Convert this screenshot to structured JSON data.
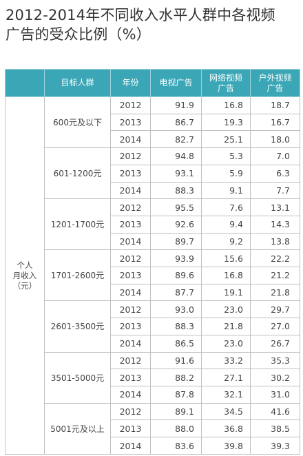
{
  "title": {
    "line1": "2012-2014年不同收入水平人群中各视频",
    "line2": "广告的受众比例（%）"
  },
  "chart_data": {
    "type": "table",
    "title": "2012-2014年不同收入水平人群中各视频广告的受众比例（%）",
    "columns": [
      "",
      "目标人群",
      "年份",
      "电视广告",
      "网络视频广告",
      "户外视频广告"
    ],
    "column_lines": {
      "col3": [
        "网络视频",
        "广告"
      ],
      "col4": [
        "户外视频",
        "广告"
      ]
    },
    "category": [
      "个人",
      "月收入",
      "（元）"
    ],
    "groups": [
      {
        "label": "600元及以下",
        "rows": [
          {
            "year": "2012",
            "tv": "91.9",
            "web": "16.8",
            "outdoor": "18.7"
          },
          {
            "year": "2013",
            "tv": "86.7",
            "web": "19.3",
            "outdoor": "16.7"
          },
          {
            "year": "2014",
            "tv": "82.7",
            "web": "25.1",
            "outdoor": "18.0"
          }
        ]
      },
      {
        "label": "601-1200元",
        "rows": [
          {
            "year": "2012",
            "tv": "94.8",
            "web": "5.3",
            "outdoor": "7.0"
          },
          {
            "year": "2013",
            "tv": "93.1",
            "web": "5.9",
            "outdoor": "6.3"
          },
          {
            "year": "2014",
            "tv": "88.3",
            "web": "9.1",
            "outdoor": "7.7"
          }
        ]
      },
      {
        "label": "1201-1700元",
        "rows": [
          {
            "year": "2012",
            "tv": "95.5",
            "web": "7.6",
            "outdoor": "13.1"
          },
          {
            "year": "2013",
            "tv": "92.6",
            "web": "9.4",
            "outdoor": "14.3"
          },
          {
            "year": "2014",
            "tv": "89.7",
            "web": "9.2",
            "outdoor": "13.8"
          }
        ]
      },
      {
        "label": "1701-2600元",
        "rows": [
          {
            "year": "2012",
            "tv": "93.9",
            "web": "15.6",
            "outdoor": "22.2"
          },
          {
            "year": "2013",
            "tv": "89.6",
            "web": "16.8",
            "outdoor": "21.2"
          },
          {
            "year": "2014",
            "tv": "87.7",
            "web": "19.1",
            "outdoor": "21.8"
          }
        ]
      },
      {
        "label": "2601-3500元",
        "rows": [
          {
            "year": "2012",
            "tv": "93.0",
            "web": "23.0",
            "outdoor": "29.7"
          },
          {
            "year": "2013",
            "tv": "88.3",
            "web": "21.8",
            "outdoor": "27.0"
          },
          {
            "year": "2014",
            "tv": "86.5",
            "web": "23.0",
            "outdoor": "26.7"
          }
        ]
      },
      {
        "label": "3501-5000元",
        "rows": [
          {
            "year": "2012",
            "tv": "91.6",
            "web": "33.2",
            "outdoor": "35.3"
          },
          {
            "year": "2013",
            "tv": "88.2",
            "web": "27.1",
            "outdoor": "30.2"
          },
          {
            "year": "2014",
            "tv": "87.8",
            "web": "32.1",
            "outdoor": "31.0"
          }
        ]
      },
      {
        "label": "5001元及以上",
        "rows": [
          {
            "year": "2012",
            "tv": "89.1",
            "web": "34.5",
            "outdoor": "41.6"
          },
          {
            "year": "2013",
            "tv": "88.0",
            "web": "36.8",
            "outdoor": "38.5"
          },
          {
            "year": "2014",
            "tv": "83.6",
            "web": "39.8",
            "outdoor": "39.3"
          }
        ]
      }
    ]
  }
}
